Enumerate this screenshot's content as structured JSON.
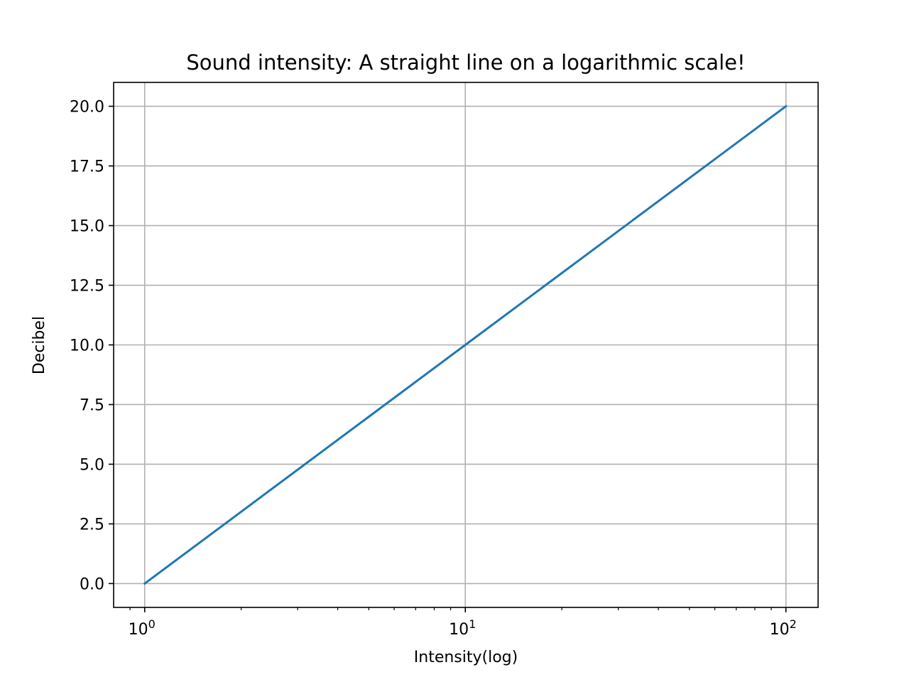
{
  "chart_data": {
    "type": "line",
    "title": "Sound intensity: A straight line on a logarithmic scale!",
    "xlabel": "Intensity(log)",
    "ylabel": "Decibel",
    "xscale": "log",
    "xlim": [
      0.8,
      126
    ],
    "ylim": [
      -1.0,
      21.0
    ],
    "grid": true,
    "line_color": "#1f77b4",
    "x_major_ticks": [
      {
        "value": 1,
        "base": "10",
        "exp": "0"
      },
      {
        "value": 10,
        "base": "10",
        "exp": "1"
      },
      {
        "value": 100,
        "base": "10",
        "exp": "2"
      }
    ],
    "x_minor_ticks": [
      0.9,
      2,
      3,
      4,
      5,
      6,
      7,
      8,
      9,
      20,
      30,
      40,
      50,
      60,
      70,
      80,
      90
    ],
    "y_ticks": [
      {
        "value": 0.0,
        "label": "0.0"
      },
      {
        "value": 2.5,
        "label": "2.5"
      },
      {
        "value": 5.0,
        "label": "5.0"
      },
      {
        "value": 7.5,
        "label": "7.5"
      },
      {
        "value": 10.0,
        "label": "10.0"
      },
      {
        "value": 12.5,
        "label": "12.5"
      },
      {
        "value": 15.0,
        "label": "15.0"
      },
      {
        "value": 17.5,
        "label": "17.5"
      },
      {
        "value": 20.0,
        "label": "20.0"
      }
    ],
    "series": [
      {
        "x": [
          1,
          2,
          5,
          10,
          20,
          50,
          100
        ],
        "y": [
          0.0,
          3.01,
          6.99,
          10.0,
          13.01,
          16.99,
          20.0
        ]
      }
    ]
  }
}
